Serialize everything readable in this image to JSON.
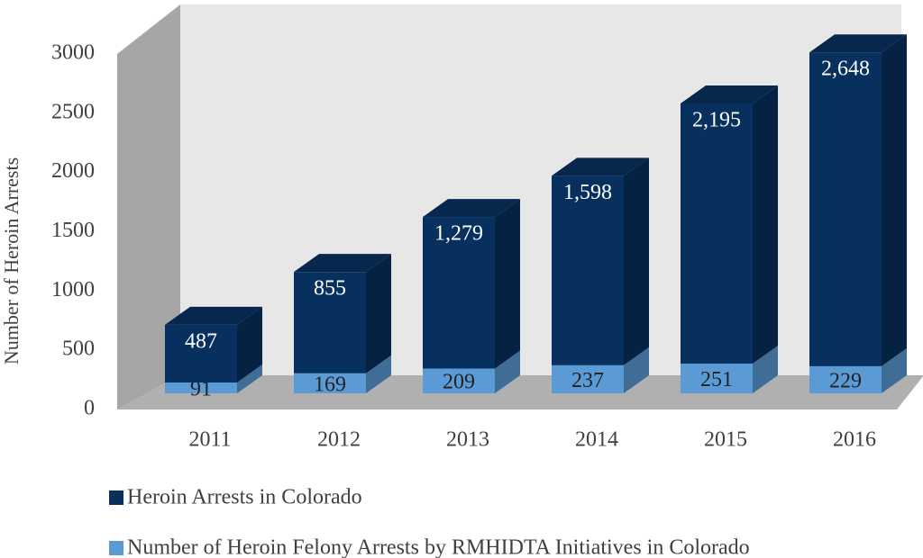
{
  "chart_data": {
    "type": "bar3d_stacked",
    "y_label": "Number of Heroin Arrests",
    "categories": [
      "2011",
      "2012",
      "2013",
      "2014",
      "2015",
      "2016"
    ],
    "series": [
      {
        "name": "Number of Heroin Felony Arrests by RMHIDTA Initiatives in Colorado",
        "color": "#5b9bd5",
        "values": [
          91,
          169,
          209,
          237,
          251,
          229
        ]
      },
      {
        "name": "Heroin Arrests in Colorado",
        "color": "#08305e",
        "values": [
          487,
          855,
          1279,
          1598,
          2195,
          2648
        ],
        "value_labels": [
          "487",
          "855",
          "1,279",
          "1,598",
          "2,195",
          "2,648"
        ]
      }
    ],
    "ylim": [
      0,
      3000
    ],
    "yticks": [
      0,
      500,
      1000,
      1500,
      2000,
      2500,
      3000
    ],
    "legend": "bottom"
  }
}
